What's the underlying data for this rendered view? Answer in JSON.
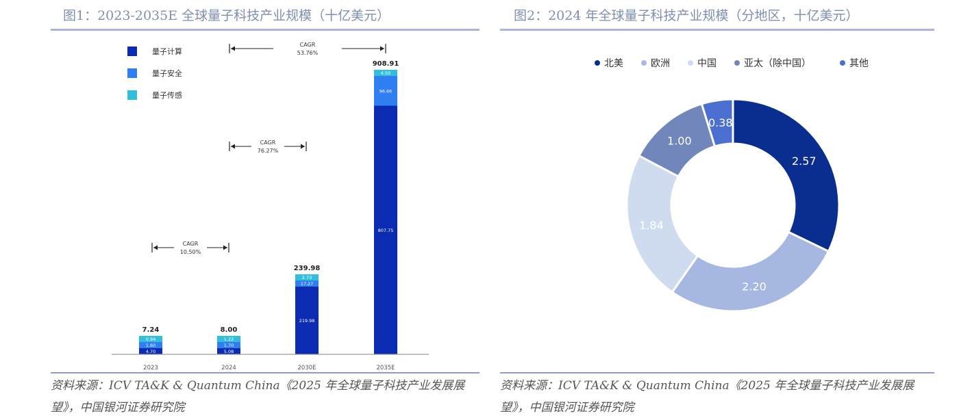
{
  "panels": {
    "left_title": "图1：2023-2035E 全球量子科技产业规模（十亿美元）",
    "right_title": "图2：2024 年全球量子科技产业规模（分地区，十亿美元）",
    "source_line1": "资料来源：ICV TA&K & Quantum China《2025 年全球量子科技产业发展展",
    "source_line2": "望》，中国银河证券研究院"
  },
  "colors": {
    "compute": "#0b2bb3",
    "security": "#2f7ff2",
    "sensing": "#33bfdc",
    "na": "#0a2e8f",
    "eu": "#a6b8e2",
    "cn": "#cfdcef",
    "apac": "#7186ba",
    "other": "#4b6fd0"
  },
  "chart_data": [
    {
      "type": "bar",
      "stacked": true,
      "categories": [
        "2023",
        "2024",
        "2030E",
        "2035E"
      ],
      "series": [
        {
          "name": "量子计算",
          "color_key": "compute",
          "values": [
            4.7,
            5.08,
            219.98,
            807.75
          ]
        },
        {
          "name": "量子安全",
          "color_key": "security",
          "values": [
            1.6,
            1.7,
            17.27,
            96.66
          ]
        },
        {
          "name": "量子传感",
          "color_key": "sensing",
          "values": [
            0.94,
            1.22,
            2.73,
            4.5
          ]
        }
      ],
      "totals": [
        "7.24",
        "8.00",
        "239.98",
        "908.91"
      ],
      "segment_labels": [
        [
          "4.70",
          "1.60",
          "0.94"
        ],
        [
          "5.08",
          "1.70",
          "1.22"
        ],
        [
          "219.98",
          "17.27",
          "2.73"
        ],
        [
          "807.75",
          "96.66",
          "4.50"
        ]
      ],
      "cagr_annotations": [
        {
          "label": "CAGR",
          "value": "10.50%"
        },
        {
          "label": "CAGR",
          "value": "76.27%"
        },
        {
          "label": "CAGR",
          "value": "53.76%"
        }
      ],
      "legend_position": "top-left",
      "ylim": [
        0,
        960
      ]
    },
    {
      "type": "pie",
      "donut": true,
      "slices": [
        {
          "name": "北美",
          "value": 2.57,
          "label": "2.57",
          "color_key": "na"
        },
        {
          "name": "欧洲",
          "value": 2.2,
          "label": "2.20",
          "color_key": "eu"
        },
        {
          "name": "中国",
          "value": 1.84,
          "label": "1.84",
          "color_key": "cn"
        },
        {
          "name": "亚太（除中国）",
          "value": 1.0,
          "label": "1.00",
          "color_key": "apac"
        },
        {
          "name": "其他",
          "value": 0.38,
          "label": "0.38",
          "color_key": "other"
        }
      ],
      "legend_position": "top"
    }
  ]
}
